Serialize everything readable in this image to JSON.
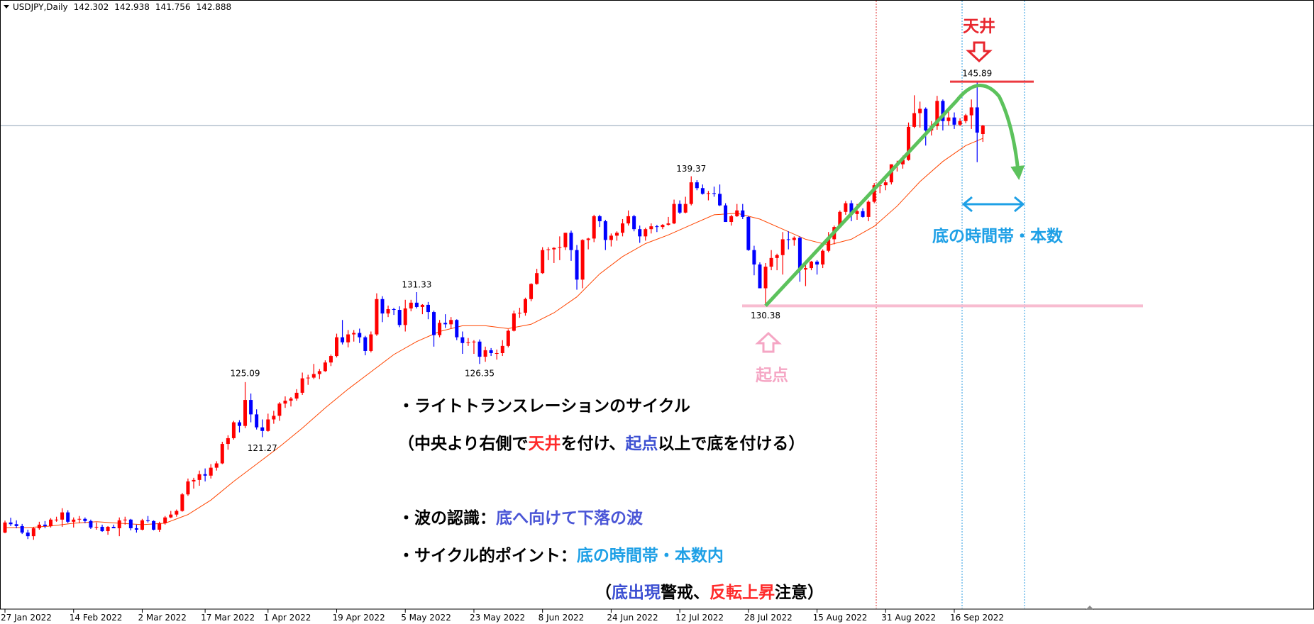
{
  "chart_data": {
    "type": "candlestick",
    "title": "USDJPY,Daily",
    "up_color": "#ff0000",
    "down_color": "#0000ff",
    "xlim": [
      -0.87,
      228.9
    ],
    "ylim": [
      109.34,
      151.6
    ],
    "xticks": [
      {
        "value": 0,
        "label": "27 Jan 2022"
      },
      {
        "value": 12,
        "label": "14 Feb 2022"
      },
      {
        "value": 24,
        "label": "2 Mar 2022"
      },
      {
        "value": 35,
        "label": "17 Mar 2022"
      },
      {
        "value": 46,
        "label": "1 Apr 2022"
      },
      {
        "value": 58,
        "label": "19 Apr 2022"
      },
      {
        "value": 70,
        "label": "5 May 2022"
      },
      {
        "value": 82,
        "label": "23 May 2022"
      },
      {
        "value": 94,
        "label": "8 Jun 2022"
      },
      {
        "value": 106,
        "label": "24 Jun 2022"
      },
      {
        "value": 118,
        "label": "12 Jul 2022"
      },
      {
        "value": 130,
        "label": "28 Jul 2022"
      },
      {
        "value": 142,
        "label": "15 Aug 2022"
      },
      {
        "value": 154,
        "label": "31 Aug 2022"
      },
      {
        "value": 166,
        "label": "16 Sep 2022"
      }
    ],
    "ohlc": [
      [
        114.65,
        115.48,
        114.6,
        115.35
      ],
      [
        115.35,
        115.68,
        115.1,
        115.23
      ],
      [
        115.23,
        115.5,
        114.95,
        115.1
      ],
      [
        115.1,
        115.25,
        114.55,
        114.65
      ],
      [
        114.65,
        114.85,
        114.2,
        114.4
      ],
      [
        114.4,
        115.05,
        114.15,
        114.95
      ],
      [
        114.95,
        115.4,
        114.85,
        115.2
      ],
      [
        115.2,
        115.45,
        114.95,
        115.1
      ],
      [
        115.1,
        115.65,
        115.0,
        115.55
      ],
      [
        115.55,
        115.75,
        115.4,
        115.55
      ],
      [
        115.55,
        116.34,
        115.05,
        116.05
      ],
      [
        116.05,
        116.2,
        115.3,
        115.4
      ],
      [
        115.4,
        115.7,
        115.0,
        115.55
      ],
      [
        115.55,
        115.8,
        115.3,
        115.6
      ],
      [
        115.6,
        115.7,
        115.3,
        115.45
      ],
      [
        115.45,
        115.55,
        114.9,
        115.0
      ],
      [
        115.0,
        115.35,
        114.85,
        115.05
      ],
      [
        115.05,
        115.2,
        114.7,
        114.75
      ],
      [
        114.75,
        115.1,
        114.5,
        115.05
      ],
      [
        115.05,
        115.2,
        114.95,
        114.95
      ],
      [
        114.95,
        115.7,
        114.4,
        115.5
      ],
      [
        115.5,
        115.75,
        115.2,
        115.55
      ],
      [
        115.55,
        115.6,
        114.8,
        114.95
      ],
      [
        114.95,
        115.2,
        114.65,
        114.85
      ],
      [
        114.85,
        115.6,
        114.8,
        115.5
      ],
      [
        115.5,
        115.8,
        115.35,
        115.45
      ],
      [
        115.45,
        115.5,
        114.8,
        114.85
      ],
      [
        114.85,
        115.4,
        114.7,
        115.3
      ],
      [
        115.3,
        115.8,
        115.2,
        115.7
      ],
      [
        115.7,
        116.15,
        115.65,
        115.9
      ],
      [
        115.9,
        116.25,
        115.75,
        116.15
      ],
      [
        116.15,
        117.4,
        116.1,
        117.3
      ],
      [
        117.3,
        118.4,
        117.2,
        118.2
      ],
      [
        118.2,
        118.45,
        117.7,
        118.3
      ],
      [
        118.3,
        118.95,
        117.9,
        118.7
      ],
      [
        118.7,
        119.1,
        118.2,
        118.6
      ],
      [
        118.6,
        119.4,
        118.4,
        119.15
      ],
      [
        119.15,
        119.6,
        118.95,
        119.45
      ],
      [
        119.45,
        120.95,
        119.4,
        120.8
      ],
      [
        120.8,
        121.4,
        120.4,
        121.2
      ],
      [
        121.2,
        122.4,
        121.1,
        122.3
      ],
      [
        122.3,
        122.45,
        121.6,
        122.05
      ],
      [
        122.05,
        125.09,
        121.9,
        123.85
      ],
      [
        123.85,
        124.3,
        122.3,
        122.85
      ],
      [
        122.85,
        123.2,
        121.8,
        121.95
      ],
      [
        121.95,
        122.5,
        121.27,
        121.7
      ],
      [
        121.7,
        122.9,
        121.65,
        122.5
      ],
      [
        122.5,
        123.1,
        122.2,
        122.75
      ],
      [
        122.75,
        123.7,
        122.4,
        123.6
      ],
      [
        123.6,
        124.1,
        123.3,
        123.8
      ],
      [
        123.8,
        124.05,
        123.4,
        123.95
      ],
      [
        123.95,
        124.6,
        123.8,
        124.35
      ],
      [
        124.35,
        125.75,
        124.2,
        125.35
      ],
      [
        125.35,
        125.6,
        124.9,
        125.4
      ],
      [
        125.4,
        126.35,
        125.3,
        125.65
      ],
      [
        125.65,
        126.0,
        125.3,
        125.85
      ],
      [
        125.85,
        126.6,
        125.8,
        126.45
      ],
      [
        126.45,
        127.0,
        126.2,
        126.9
      ],
      [
        126.9,
        128.45,
        126.8,
        128.2
      ],
      [
        128.2,
        129.4,
        127.7,
        127.85
      ],
      [
        127.85,
        128.7,
        127.5,
        128.4
      ],
      [
        128.4,
        128.7,
        127.9,
        128.5
      ],
      [
        128.5,
        128.8,
        127.8,
        128.2
      ],
      [
        128.2,
        128.3,
        126.95,
        127.25
      ],
      [
        127.25,
        128.6,
        127.15,
        128.4
      ],
      [
        128.4,
        131.25,
        128.3,
        130.85
      ],
      [
        130.85,
        131.05,
        129.25,
        129.85
      ],
      [
        129.85,
        130.4,
        129.6,
        130.15
      ],
      [
        130.15,
        130.25,
        129.75,
        130.1
      ],
      [
        130.1,
        130.35,
        128.9,
        129.05
      ],
      [
        129.05,
        130.8,
        128.6,
        130.2
      ],
      [
        130.2,
        130.8,
        130.0,
        130.6
      ],
      [
        130.6,
        131.33,
        130.2,
        130.3
      ],
      [
        130.3,
        130.5,
        129.8,
        130.45
      ],
      [
        130.45,
        130.65,
        129.45,
        129.95
      ],
      [
        129.95,
        130.05,
        127.55,
        128.35
      ],
      [
        128.35,
        129.4,
        128.2,
        129.2
      ],
      [
        129.2,
        129.8,
        128.85,
        129.1
      ],
      [
        129.1,
        129.6,
        128.8,
        129.4
      ],
      [
        129.4,
        129.45,
        128.0,
        128.2
      ],
      [
        128.2,
        128.6,
        127.05,
        127.8
      ],
      [
        127.8,
        128.15,
        127.6,
        127.85
      ],
      [
        127.85,
        128.0,
        127.05,
        127.9
      ],
      [
        127.9,
        128.05,
        126.35,
        126.85
      ],
      [
        126.85,
        127.55,
        126.5,
        127.3
      ],
      [
        127.3,
        127.45,
        126.9,
        127.1
      ],
      [
        127.1,
        127.35,
        126.65,
        127.1
      ],
      [
        127.1,
        128.0,
        126.9,
        127.6
      ],
      [
        127.6,
        128.75,
        127.5,
        128.65
      ],
      [
        128.65,
        130.05,
        128.6,
        129.85
      ],
      [
        129.85,
        130.25,
        129.55,
        129.9
      ],
      [
        129.9,
        130.95,
        129.7,
        130.85
      ],
      [
        130.85,
        131.95,
        130.7,
        131.9
      ],
      [
        131.9,
        132.95,
        131.85,
        132.65
      ],
      [
        132.65,
        134.45,
        132.6,
        134.25
      ],
      [
        134.25,
        134.45,
        133.55,
        134.3
      ],
      [
        134.3,
        134.45,
        133.35,
        134.4
      ],
      [
        134.4,
        135.2,
        133.55,
        134.45
      ],
      [
        134.45,
        135.45,
        134.25,
        135.45
      ],
      [
        135.45,
        135.6,
        133.5,
        134.25
      ],
      [
        134.25,
        134.6,
        131.5,
        132.2
      ],
      [
        132.2,
        135.0,
        131.6,
        134.95
      ],
      [
        134.95,
        135.1,
        134.3,
        135.05
      ],
      [
        135.05,
        136.7,
        134.8,
        136.6
      ],
      [
        136.6,
        136.7,
        135.85,
        136.25
      ],
      [
        136.25,
        136.35,
        134.25,
        134.95
      ],
      [
        134.95,
        135.4,
        134.5,
        135.25
      ],
      [
        135.25,
        135.55,
        134.9,
        135.45
      ],
      [
        135.45,
        136.4,
        135.2,
        136.1
      ],
      [
        136.1,
        137.0,
        135.95,
        136.6
      ],
      [
        136.6,
        136.7,
        135.55,
        135.7
      ],
      [
        135.7,
        135.95,
        134.75,
        135.2
      ],
      [
        135.2,
        135.8,
        134.9,
        135.7
      ],
      [
        135.7,
        136.1,
        135.4,
        135.9
      ],
      [
        135.9,
        136.0,
        135.5,
        135.85
      ],
      [
        135.85,
        136.05,
        135.7,
        136.0
      ],
      [
        136.0,
        136.55,
        135.95,
        136.1
      ],
      [
        136.1,
        137.75,
        136.05,
        137.45
      ],
      [
        137.45,
        137.7,
        136.75,
        136.85
      ],
      [
        136.85,
        137.95,
        136.8,
        137.45
      ],
      [
        137.45,
        139.37,
        137.35,
        138.95
      ],
      [
        138.95,
        139.1,
        138.4,
        138.55
      ],
      [
        138.55,
        138.8,
        138.1,
        138.15
      ],
      [
        138.15,
        138.35,
        137.7,
        138.2
      ],
      [
        138.2,
        138.65,
        137.95,
        138.15
      ],
      [
        138.15,
        138.8,
        137.3,
        137.35
      ],
      [
        137.35,
        137.5,
        136.2,
        136.2
      ],
      [
        136.2,
        136.7,
        135.95,
        136.6
      ],
      [
        136.6,
        137.45,
        136.55,
        137.0
      ],
      [
        137.0,
        137.45,
        136.4,
        136.55
      ],
      [
        136.55,
        136.6,
        134.2,
        134.25
      ],
      [
        134.25,
        134.55,
        132.5,
        133.25
      ],
      [
        133.25,
        133.4,
        131.6,
        131.6
      ],
      [
        131.6,
        133.35,
        130.38,
        133.1
      ],
      [
        133.1,
        134.25,
        132.85,
        133.7
      ],
      [
        133.7,
        134.0,
        132.85,
        133.9
      ],
      [
        133.9,
        135.5,
        132.55,
        135.0
      ],
      [
        135.0,
        135.55,
        134.3,
        134.95
      ],
      [
        134.95,
        135.2,
        134.55,
        135.1
      ],
      [
        135.1,
        135.2,
        132.05,
        132.9
      ],
      [
        132.9,
        133.2,
        131.75,
        133.0
      ],
      [
        133.0,
        133.5,
        132.85,
        133.45
      ],
      [
        133.45,
        133.55,
        132.55,
        133.25
      ],
      [
        133.25,
        134.3,
        133.0,
        134.2
      ],
      [
        134.2,
        135.5,
        134.1,
        135.0
      ],
      [
        135.0,
        135.95,
        134.65,
        135.85
      ],
      [
        135.85,
        137.0,
        135.8,
        136.9
      ],
      [
        136.9,
        137.65,
        136.7,
        137.5
      ],
      [
        137.5,
        137.7,
        136.25,
        136.75
      ],
      [
        136.75,
        137.45,
        136.35,
        136.95
      ],
      [
        136.95,
        137.15,
        136.5,
        136.55
      ],
      [
        136.55,
        137.7,
        136.25,
        137.6
      ],
      [
        137.6,
        138.9,
        137.5,
        138.75
      ],
      [
        138.75,
        138.95,
        138.2,
        138.75
      ],
      [
        138.75,
        139.1,
        138.4,
        138.95
      ],
      [
        138.95,
        140.2,
        138.8,
        140.2
      ],
      [
        140.2,
        140.45,
        139.7,
        140.2
      ],
      [
        140.2,
        140.8,
        139.9,
        140.5
      ],
      [
        140.5,
        143.1,
        140.45,
        142.8
      ],
      [
        142.8,
        144.99,
        142.7,
        143.75
      ],
      [
        143.75,
        144.55,
        142.75,
        144.05
      ],
      [
        144.05,
        144.15,
        141.5,
        142.55
      ],
      [
        142.55,
        143.2,
        142.2,
        142.85
      ],
      [
        142.85,
        144.95,
        142.6,
        144.6
      ],
      [
        144.6,
        144.7,
        142.55,
        143.2
      ],
      [
        143.2,
        143.9,
        142.9,
        143.45
      ],
      [
        143.45,
        143.8,
        142.65,
        142.95
      ],
      [
        142.95,
        143.4,
        142.85,
        143.2
      ],
      [
        143.2,
        143.7,
        143.05,
        143.6
      ],
      [
        143.6,
        144.7,
        142.65,
        144.15
      ],
      [
        144.15,
        145.89,
        140.35,
        142.4
      ],
      [
        142.302,
        142.938,
        141.756,
        142.888
      ]
    ],
    "ma": {
      "color": "#ff4500",
      "x": [
        0,
        4,
        8,
        12,
        16,
        20,
        24,
        28,
        32,
        36,
        40,
        44,
        48,
        52,
        56,
        60,
        64,
        68,
        72,
        76,
        80,
        84,
        88,
        92,
        96,
        100,
        104,
        108,
        112,
        116,
        120,
        124,
        128,
        132,
        136,
        140,
        144,
        148,
        152,
        156,
        160,
        164,
        168,
        171
      ],
      "values": [
        115.0,
        115.0,
        115.1,
        115.3,
        115.4,
        115.3,
        115.2,
        115.3,
        115.9,
        116.9,
        118.2,
        119.4,
        120.6,
        121.9,
        123.3,
        124.6,
        125.8,
        127.0,
        127.9,
        128.6,
        129.0,
        129.0,
        128.8,
        129.1,
        129.9,
        131.0,
        132.6,
        133.8,
        134.7,
        135.3,
        136.0,
        136.7,
        136.8,
        136.4,
        135.7,
        135.0,
        134.6,
        135.0,
        135.9,
        137.3,
        139.0,
        140.4,
        141.5,
        142.0
      ]
    },
    "labels": {
      "peak": {
        "text": "天井",
        "color": "#e8262e"
      },
      "start": {
        "text": "起点",
        "color": "#f5a6c4"
      },
      "bottom_window": {
        "text": "底の時間帯・本数",
        "color": "#1ea0e6"
      }
    },
    "notes": [
      [
        {
          "text": "・ライトトランスレーションのサイクル",
          "color": "#000000"
        }
      ],
      [
        {
          "text": "（中央より右側で",
          "color": "#000000"
        },
        {
          "text": "天井",
          "color": "#ff2a2a"
        },
        {
          "text": "を付け、",
          "color": "#000000"
        },
        {
          "text": "起点",
          "color": "#3c4fd2"
        },
        {
          "text": "以上で底を付ける）",
          "color": "#000000"
        }
      ],
      [
        {
          "text": "・波の認識：",
          "color": "#000000"
        },
        {
          "text": "底へ向けて下落の波",
          "color": "#4a55d6"
        }
      ],
      [
        {
          "text": "・サイクル的ポイント：",
          "color": "#000000"
        },
        {
          "text": "底の時間帯・本数内",
          "color": "#1ea0e6"
        }
      ],
      [
        {
          "text": "（",
          "color": "#000000"
        },
        {
          "text": "底出現",
          "color": "#3c4fd2"
        },
        {
          "text": "警戒、",
          "color": "#000000"
        },
        {
          "text": "反転上昇",
          "color": "#ff2a2a"
        },
        {
          "text": "注意）",
          "color": "#000000"
        }
      ]
    ]
  }
}
